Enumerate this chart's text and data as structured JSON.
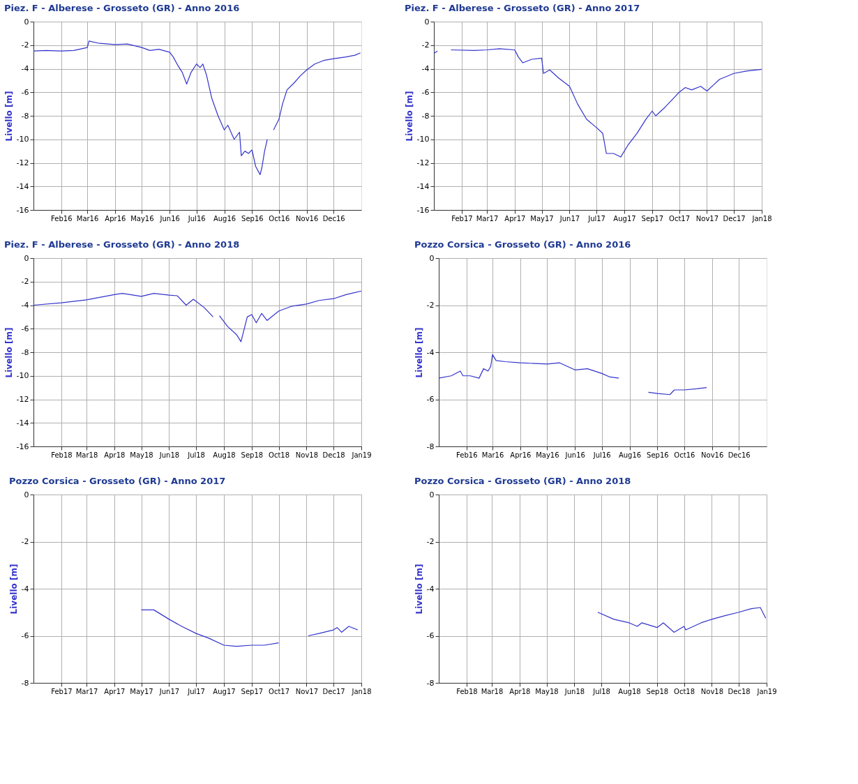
{
  "chart_data": [
    {
      "type": "line",
      "title": "Piez. F - Alberese - Grosseto (GR) - Anno 2016",
      "ylabel": "Livello [m]",
      "grid": true,
      "xlim": [
        "2016-01-01",
        "2017-01-01"
      ],
      "ylim": [
        -16,
        0
      ],
      "yticks": [
        0,
        -2,
        -4,
        -6,
        -8,
        -10,
        -12,
        -14,
        -16
      ],
      "xticks": [
        {
          "value": "2016-02-01",
          "label": "Feb16"
        },
        {
          "value": "2016-03-01",
          "label": "Mar16"
        },
        {
          "value": "2016-04-01",
          "label": "Apr16"
        },
        {
          "value": "2016-05-01",
          "label": "May16"
        },
        {
          "value": "2016-06-01",
          "label": "Jun16"
        },
        {
          "value": "2016-07-01",
          "label": "Jul16"
        },
        {
          "value": "2016-08-01",
          "label": "Aug16"
        },
        {
          "value": "2016-09-01",
          "label": "Sep16"
        },
        {
          "value": "2016-10-01",
          "label": "Oct16"
        },
        {
          "value": "2016-11-01",
          "label": "Nov16"
        },
        {
          "value": "2016-12-01",
          "label": "Dec16"
        }
      ],
      "series": [
        {
          "color": "#3333cc",
          "x": [
            "2016-01-01",
            "2016-01-15",
            "2016-02-01",
            "2016-02-15",
            "2016-03-01",
            "2016-03-03",
            "2016-03-15",
            "2016-04-01",
            "2016-04-15",
            "2016-05-01",
            "2016-05-10",
            "2016-05-20",
            "2016-06-01",
            "2016-06-05",
            "2016-06-10",
            "2016-06-15",
            "2016-06-20",
            "2016-06-25",
            "2016-07-01",
            "2016-07-05",
            "2016-07-08",
            "2016-07-12",
            "2016-07-18",
            "2016-07-25",
            "2016-08-01",
            "2016-08-05",
            "2016-08-12",
            "2016-08-18",
            "2016-08-20",
            "2016-08-24",
            "2016-08-28",
            "2016-09-01",
            "2016-09-05",
            "2016-09-10",
            "2016-09-12",
            "2016-09-15",
            "2016-09-18",
            "2016-09-22",
            "2016-09-25",
            "2016-10-01",
            "2016-10-05",
            "2016-10-10",
            "2016-10-18",
            "2016-10-25",
            "2016-11-01",
            "2016-11-10",
            "2016-11-20",
            "2016-12-01",
            "2016-12-15",
            "2016-12-25",
            "2016-12-31"
          ],
          "values": [
            -2.5,
            -2.45,
            -2.5,
            -2.45,
            -2.2,
            -1.65,
            -1.85,
            -1.95,
            -1.9,
            -2.2,
            -2.45,
            -2.35,
            -2.6,
            -3.0,
            -3.7,
            -4.3,
            -5.3,
            -4.3,
            -3.6,
            -3.9,
            -3.6,
            -4.5,
            -6.5,
            -8.0,
            -9.2,
            -8.8,
            -10.0,
            -9.4,
            -11.4,
            -11.0,
            -11.2,
            -10.9,
            -12.3,
            -13.0,
            -12.4,
            -11.0,
            -10.0,
            null,
            -9.2,
            -8.3,
            -7.0,
            -5.8,
            -5.2,
            -4.6,
            -4.1,
            -3.6,
            -3.3,
            -3.15,
            -3.0,
            -2.85,
            -2.65
          ]
        }
      ]
    },
    {
      "type": "line",
      "title": "Piez. F - Alberese - Grosseto (GR) - Anno 2017",
      "ylabel": "Livello [m]",
      "grid": true,
      "xlim": [
        "2017-01-01",
        "2018-01-01"
      ],
      "ylim": [
        -16,
        0
      ],
      "yticks": [
        0,
        -2,
        -4,
        -6,
        -8,
        -10,
        -12,
        -14,
        -16
      ],
      "xticks": [
        {
          "value": "2017-02-01",
          "label": "Feb17"
        },
        {
          "value": "2017-03-01",
          "label": "Mar17"
        },
        {
          "value": "2017-04-01",
          "label": "Apr17"
        },
        {
          "value": "2017-05-01",
          "label": "May17"
        },
        {
          "value": "2017-06-01",
          "label": "Jun17"
        },
        {
          "value": "2017-07-01",
          "label": "Jul17"
        },
        {
          "value": "2017-08-01",
          "label": "Aug17"
        },
        {
          "value": "2017-09-01",
          "label": "Sep17"
        },
        {
          "value": "2017-10-01",
          "label": "Oct17"
        },
        {
          "value": "2017-11-01",
          "label": "Nov17"
        },
        {
          "value": "2017-12-01",
          "label": "Dec17"
        },
        {
          "value": "2018-01-01",
          "label": "Jan18"
        }
      ],
      "series": [
        {
          "color": "#3333cc",
          "x": [
            "2017-01-01",
            "2017-01-05",
            "2017-01-12",
            "2017-01-20",
            "2017-02-15",
            "2017-03-01",
            "2017-03-15",
            "2017-04-01",
            "2017-04-05",
            "2017-04-10",
            "2017-04-20",
            "2017-05-01",
            "2017-05-03",
            "2017-05-10",
            "2017-05-20",
            "2017-06-01",
            "2017-06-10",
            "2017-06-20",
            "2017-07-01",
            "2017-07-08",
            "2017-07-12",
            "2017-07-20",
            "2017-07-28",
            "2017-08-05",
            "2017-08-15",
            "2017-08-25",
            "2017-09-01",
            "2017-09-05",
            "2017-09-15",
            "2017-09-25",
            "2017-10-01",
            "2017-10-08",
            "2017-10-15",
            "2017-10-25",
            "2017-11-01",
            "2017-11-08",
            "2017-11-15",
            "2017-12-01",
            "2017-12-15",
            "2018-01-01"
          ],
          "values": [
            -2.7,
            -2.5,
            null,
            -2.4,
            -2.45,
            -2.4,
            -2.3,
            -2.4,
            -3.0,
            -3.5,
            -3.2,
            -3.1,
            -4.4,
            -4.1,
            -4.8,
            -5.5,
            -7.0,
            -8.3,
            -9.0,
            -9.5,
            -11.2,
            -11.2,
            -11.5,
            -10.5,
            -9.5,
            -8.3,
            -7.6,
            -8.0,
            -7.3,
            -6.5,
            -6.0,
            -5.6,
            -5.8,
            -5.5,
            -5.9,
            -5.4,
            -4.9,
            -4.4,
            -4.2,
            -4.05
          ]
        }
      ]
    },
    {
      "type": "line",
      "title": "Piez. F - Alberese - Grosseto (GR) - Anno 2018",
      "ylabel": "Livello [m]",
      "grid": true,
      "xlim": [
        "2018-01-01",
        "2019-01-01"
      ],
      "ylim": [
        -16,
        0
      ],
      "yticks": [
        0,
        -2,
        -4,
        -6,
        -8,
        -10,
        -12,
        -14,
        -16
      ],
      "xticks": [
        {
          "value": "2018-02-01",
          "label": "Feb18"
        },
        {
          "value": "2018-03-01",
          "label": "Mar18"
        },
        {
          "value": "2018-04-01",
          "label": "Apr18"
        },
        {
          "value": "2018-05-01",
          "label": "May18"
        },
        {
          "value": "2018-06-01",
          "label": "Jun18"
        },
        {
          "value": "2018-07-01",
          "label": "Jul18"
        },
        {
          "value": "2018-08-01",
          "label": "Aug18"
        },
        {
          "value": "2018-09-01",
          "label": "Sep18"
        },
        {
          "value": "2018-10-01",
          "label": "Oct18"
        },
        {
          "value": "2018-11-01",
          "label": "Nov18"
        },
        {
          "value": "2018-12-01",
          "label": "Dec18"
        },
        {
          "value": "2019-01-01",
          "label": "Jan19"
        }
      ],
      "series": [
        {
          "color": "#3333cc",
          "x": [
            "2018-01-01",
            "2018-02-01",
            "2018-03-01",
            "2018-04-01",
            "2018-04-10",
            "2018-05-01",
            "2018-05-15",
            "2018-06-01",
            "2018-06-10",
            "2018-06-20",
            "2018-06-28",
            "2018-07-10",
            "2018-07-20",
            "2018-07-22",
            "2018-07-27",
            "2018-08-05",
            "2018-08-15",
            "2018-08-20",
            "2018-08-27",
            "2018-09-01",
            "2018-09-06",
            "2018-09-12",
            "2018-09-18",
            "2018-10-01",
            "2018-10-15",
            "2018-11-01",
            "2018-11-15",
            "2018-12-01",
            "2018-12-15",
            "2019-01-01"
          ],
          "values": [
            -4.0,
            -3.8,
            -3.55,
            -3.1,
            -3.0,
            -3.25,
            -3.0,
            -3.15,
            -3.2,
            -4.0,
            -3.5,
            -4.2,
            -5.0,
            null,
            -4.9,
            -5.8,
            -6.5,
            -7.1,
            -5.0,
            -4.8,
            -5.5,
            -4.7,
            -5.3,
            -4.5,
            -4.1,
            -3.9,
            -3.6,
            -3.45,
            -3.1,
            -2.8
          ]
        }
      ]
    },
    {
      "type": "line",
      "title": "Pozzo Corsica - Grosseto (GR) - Anno 2016",
      "ylabel": "Livello [m]",
      "grid": true,
      "xlim": [
        "2016-01-01",
        "2017-01-01"
      ],
      "ylim": [
        -8,
        0
      ],
      "yticks": [
        0,
        -2,
        -4,
        -6,
        -8
      ],
      "xticks": [
        {
          "value": "2016-02-01",
          "label": "Feb16"
        },
        {
          "value": "2016-03-01",
          "label": "Mar16"
        },
        {
          "value": "2016-04-01",
          "label": "Apr16"
        },
        {
          "value": "2016-05-01",
          "label": "May16"
        },
        {
          "value": "2016-06-01",
          "label": "Jun16"
        },
        {
          "value": "2016-07-01",
          "label": "Jul16"
        },
        {
          "value": "2016-08-01",
          "label": "Aug16"
        },
        {
          "value": "2016-09-01",
          "label": "Sep16"
        },
        {
          "value": "2016-10-01",
          "label": "Oct16"
        },
        {
          "value": "2016-11-01",
          "label": "Nov16"
        },
        {
          "value": "2016-12-01",
          "label": "Dec16"
        }
      ],
      "series": [
        {
          "color": "#3333cc",
          "x": [
            "2016-01-01",
            "2016-01-15",
            "2016-01-25",
            "2016-01-28",
            "2016-02-05",
            "2016-02-15",
            "2016-02-20",
            "2016-02-25",
            "2016-02-28",
            "2016-03-01",
            "2016-03-05",
            "2016-03-15",
            "2016-04-01",
            "2016-05-01",
            "2016-05-15",
            "2016-06-01",
            "2016-06-15",
            "2016-07-01",
            "2016-07-10",
            "2016-07-20",
            "2016-08-01",
            "2016-08-22",
            "2016-09-01",
            "2016-09-15",
            "2016-09-20",
            "2016-10-01",
            "2016-10-15",
            "2016-10-26"
          ],
          "values": [
            -5.1,
            -5.0,
            -4.8,
            -5.0,
            -5.0,
            -5.1,
            -4.7,
            -4.8,
            -4.6,
            -4.1,
            -4.35,
            -4.4,
            -4.45,
            -4.5,
            -4.45,
            -4.75,
            -4.7,
            -4.9,
            -5.05,
            -5.1,
            null,
            -5.7,
            -5.75,
            -5.8,
            -5.6,
            -5.6,
            -5.55,
            -5.5
          ]
        }
      ]
    },
    {
      "type": "line",
      "title": "Pozzo Corsica - Grosseto (GR) - Anno 2017",
      "ylabel": "Livello [m]",
      "grid": true,
      "xlim": [
        "2017-01-01",
        "2018-01-01"
      ],
      "ylim": [
        -8,
        0
      ],
      "yticks": [
        0,
        -2,
        -4,
        -6,
        -8
      ],
      "xticks": [
        {
          "value": "2017-02-01",
          "label": "Feb17"
        },
        {
          "value": "2017-03-01",
          "label": "Mar17"
        },
        {
          "value": "2017-04-01",
          "label": "Apr17"
        },
        {
          "value": "2017-05-01",
          "label": "May17"
        },
        {
          "value": "2017-06-01",
          "label": "Jun17"
        },
        {
          "value": "2017-07-01",
          "label": "Jul17"
        },
        {
          "value": "2017-08-01",
          "label": "Aug17"
        },
        {
          "value": "2017-09-01",
          "label": "Sep17"
        },
        {
          "value": "2017-10-01",
          "label": "Oct17"
        },
        {
          "value": "2017-11-01",
          "label": "Nov17"
        },
        {
          "value": "2017-12-01",
          "label": "Dec17"
        },
        {
          "value": "2018-01-01",
          "label": "Jan18"
        }
      ],
      "series": [
        {
          "color": "#3333cc",
          "x": [
            "2017-05-01",
            "2017-05-15",
            "2017-06-01",
            "2017-06-15",
            "2017-07-01",
            "2017-07-15",
            "2017-08-01",
            "2017-08-15",
            "2017-09-01",
            "2017-09-15",
            "2017-10-01",
            "2017-10-15",
            "2017-11-03",
            "2017-11-15",
            "2017-12-01",
            "2017-12-05",
            "2017-12-10",
            "2017-12-18",
            "2017-12-28"
          ],
          "values": [
            -4.9,
            -4.9,
            -5.3,
            -5.6,
            -5.9,
            -6.1,
            -6.4,
            -6.45,
            -6.4,
            -6.4,
            -6.3,
            null,
            -6.0,
            -5.9,
            -5.75,
            -5.65,
            -5.85,
            -5.6,
            -5.75
          ]
        }
      ]
    },
    {
      "type": "line",
      "title": "Pozzo Corsica - Grosseto (GR) - Anno 2018",
      "ylabel": "Livello [m]",
      "grid": true,
      "xlim": [
        "2018-01-01",
        "2019-01-01"
      ],
      "ylim": [
        -8,
        0
      ],
      "yticks": [
        0,
        -2,
        -4,
        -6,
        -8
      ],
      "xticks": [
        {
          "value": "2018-02-01",
          "label": "Feb18"
        },
        {
          "value": "2018-03-01",
          "label": "Mar18"
        },
        {
          "value": "2018-04-01",
          "label": "Apr18"
        },
        {
          "value": "2018-05-01",
          "label": "May18"
        },
        {
          "value": "2018-06-01",
          "label": "Jun18"
        },
        {
          "value": "2018-07-01",
          "label": "Jul18"
        },
        {
          "value": "2018-08-01",
          "label": "Aug18"
        },
        {
          "value": "2018-09-01",
          "label": "Sep18"
        },
        {
          "value": "2018-10-01",
          "label": "Oct18"
        },
        {
          "value": "2018-11-01",
          "label": "Nov18"
        },
        {
          "value": "2018-12-01",
          "label": "Dec18"
        },
        {
          "value": "2019-01-01",
          "label": "Jan19"
        }
      ],
      "series": [
        {
          "color": "#3333cc",
          "x": [
            "2018-06-27",
            "2018-07-15",
            "2018-08-01",
            "2018-08-10",
            "2018-08-15",
            "2018-09-01",
            "2018-09-08",
            "2018-09-20",
            "2018-10-01",
            "2018-10-03",
            "2018-10-20",
            "2018-11-01",
            "2018-11-15",
            "2018-12-01",
            "2018-12-15",
            "2018-12-25",
            "2018-12-31"
          ],
          "values": [
            -5.0,
            -5.3,
            -5.45,
            -5.6,
            -5.45,
            -5.65,
            -5.45,
            -5.85,
            -5.6,
            -5.75,
            -5.45,
            -5.3,
            -5.15,
            -5.0,
            -4.85,
            -4.8,
            -5.25
          ]
        }
      ]
    }
  ]
}
